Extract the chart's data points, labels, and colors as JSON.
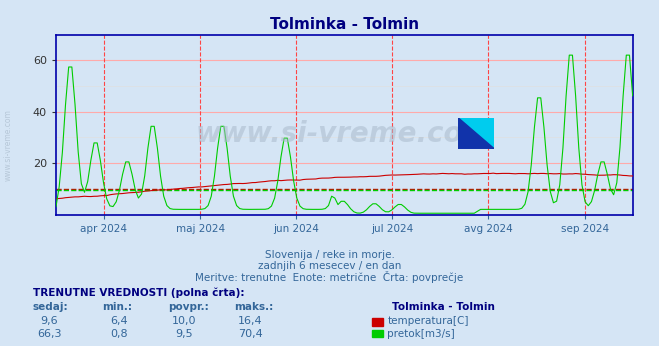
{
  "title": "Tolminka - Tolmin",
  "bg_color": "#d5e5f5",
  "axis_color": "#0000aa",
  "temp_color": "#cc0000",
  "flow_color": "#00cc00",
  "ylim": [
    0,
    70
  ],
  "yticks": [
    20,
    40,
    60
  ],
  "title_color": "#000080",
  "watermark": "www.si-vreme.com",
  "subtitle_lines": [
    "Slovenija / reke in morje.",
    "zadnjih 6 mesecev / en dan",
    "Meritve: trenutne  Enote: metrične  Črta: povprečje"
  ],
  "table_header": "TRENUTNE VREDNOSTI (polna črta):",
  "table_cols": [
    "sedaj:",
    "min.:",
    "povpr.:",
    "maks.:"
  ],
  "table_row1": [
    "9,6",
    "6,4",
    "10,0",
    "16,4"
  ],
  "table_row2": [
    "66,3",
    "0,8",
    "9,5",
    "70,4"
  ],
  "legend_title": "Tolminka - Tolmin",
  "legend_items": [
    "temperatura[C]",
    "pretok[m3/s]"
  ],
  "legend_colors": [
    "#cc0000",
    "#00cc00"
  ],
  "n_points": 183,
  "temp_avg": 10.0,
  "flow_avg": 9.5,
  "month_labels": [
    "apr 2024",
    "maj 2024",
    "jun 2024",
    "jul 2024",
    "avg 2024",
    "sep 2024"
  ],
  "month_positions": [
    0.083,
    0.25,
    0.417,
    0.583,
    0.75,
    0.917
  ]
}
